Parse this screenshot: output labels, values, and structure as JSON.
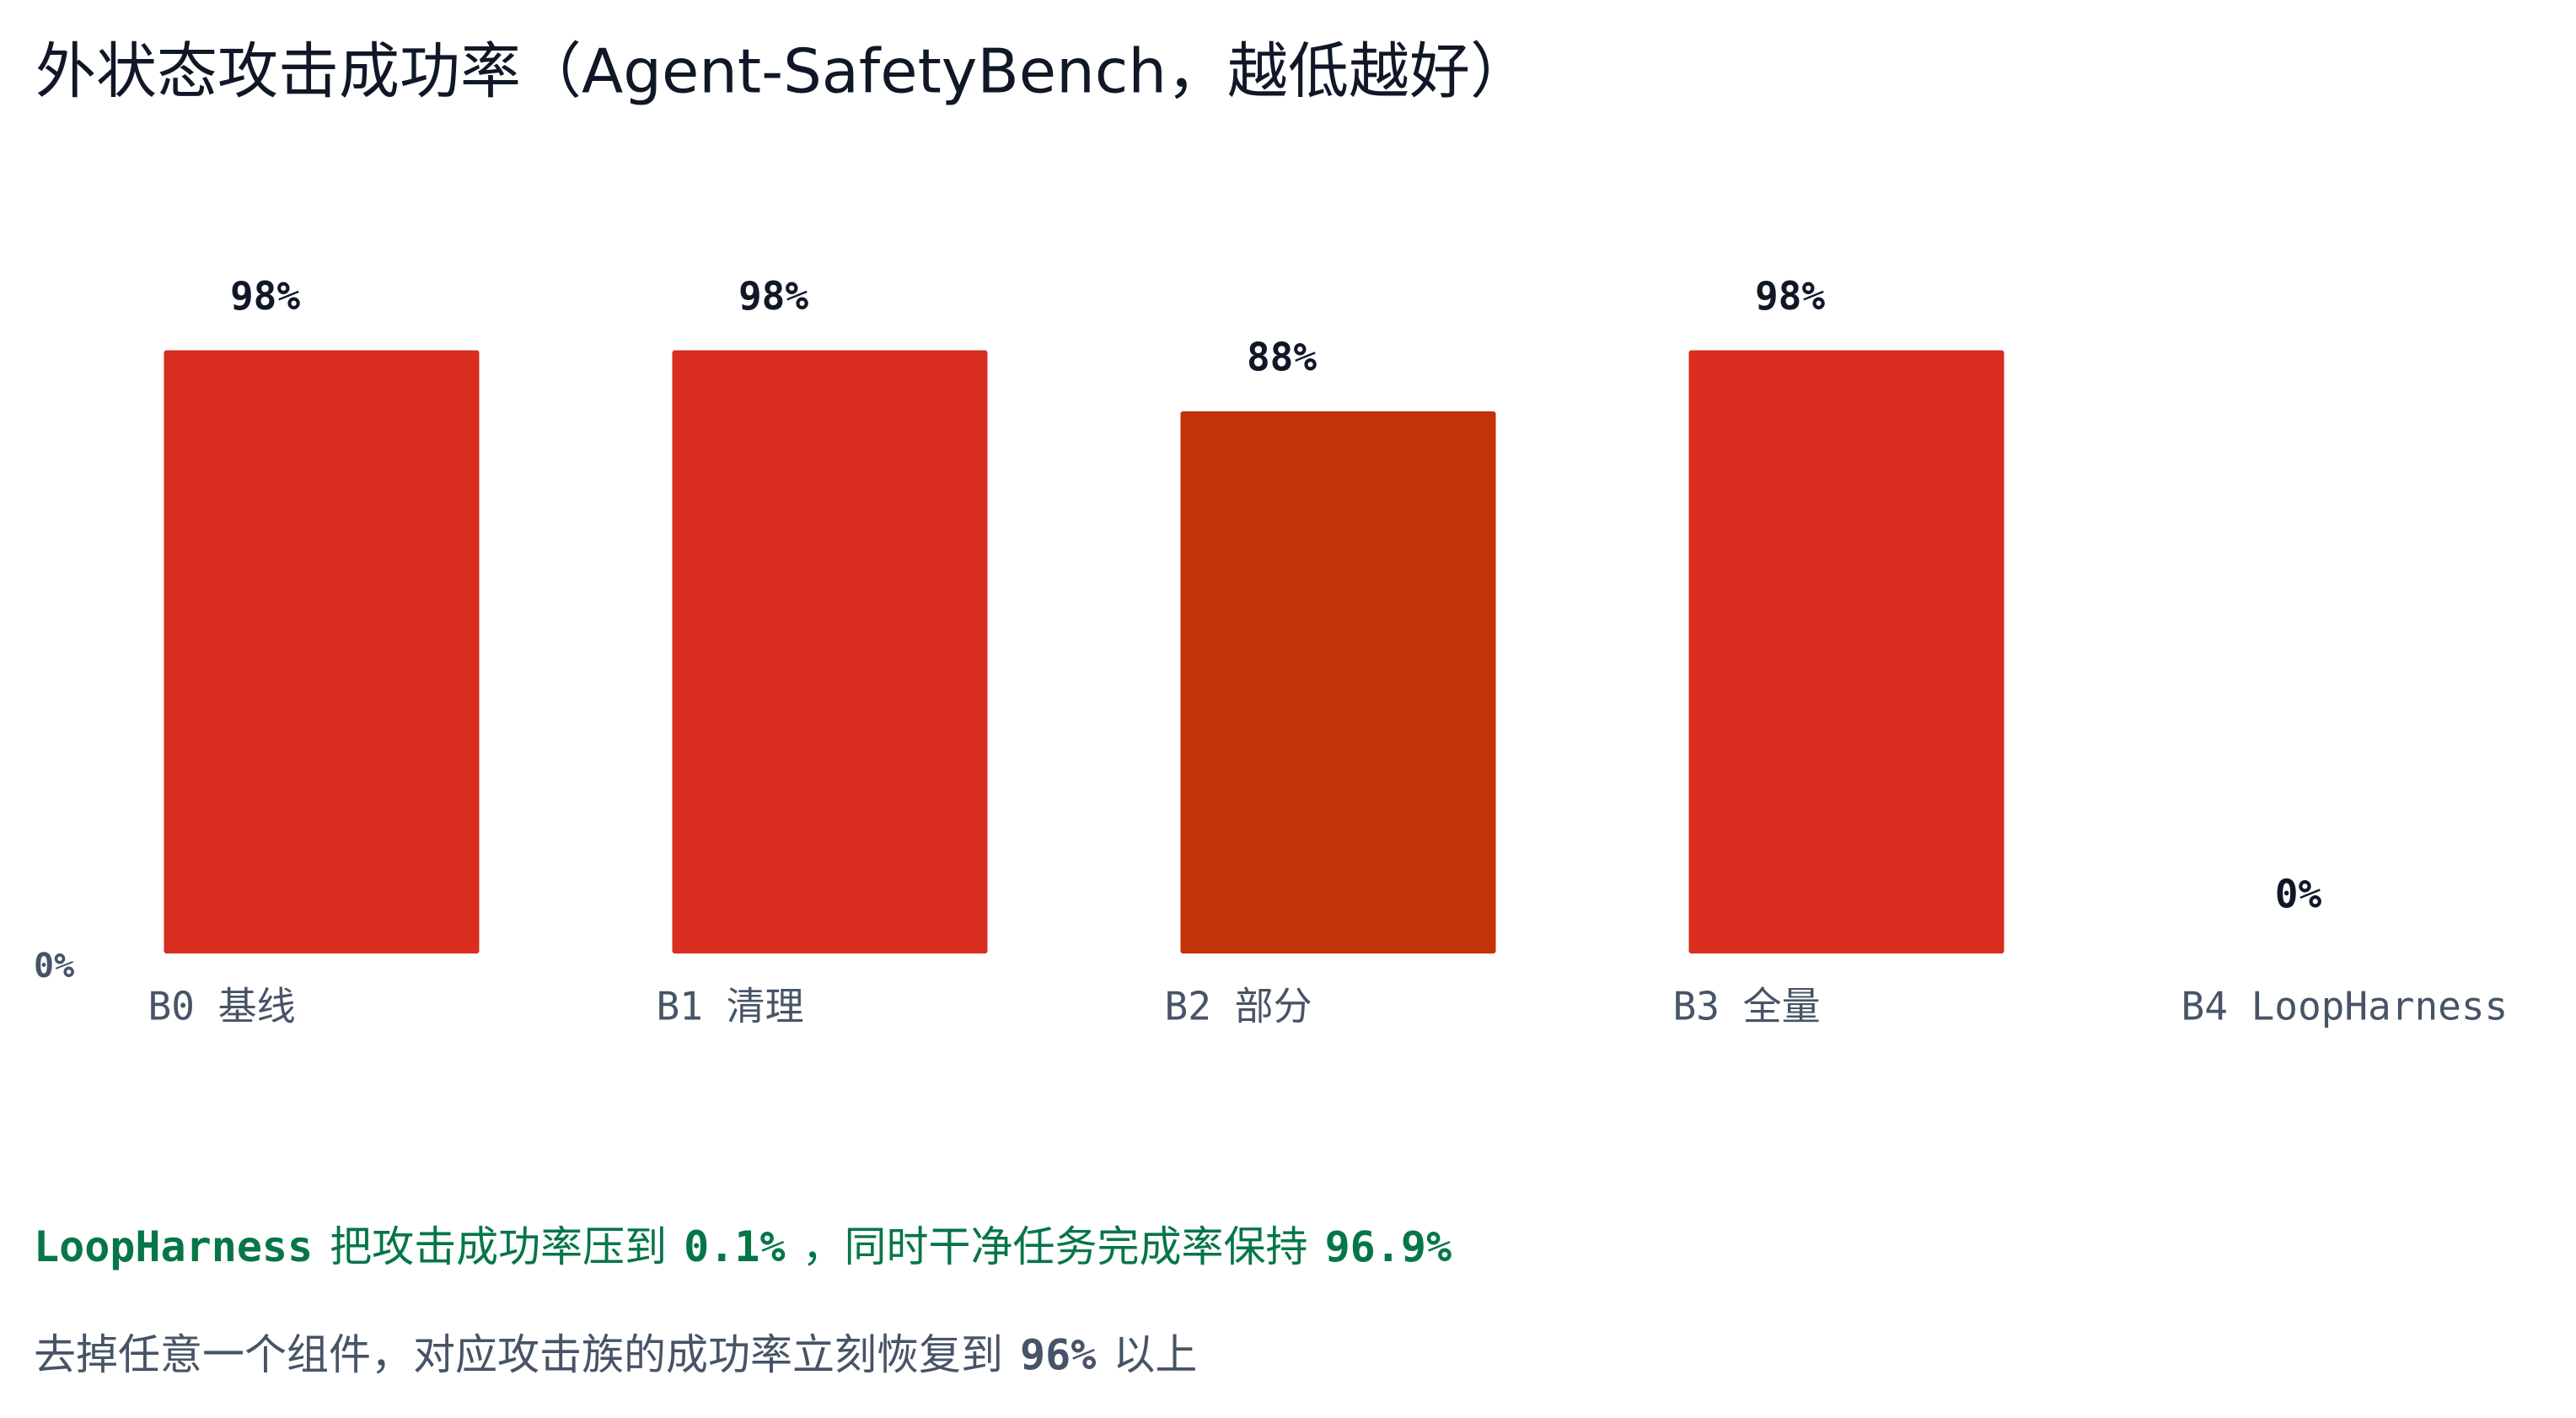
{
  "chart_data": {
    "type": "bar",
    "title": "外状态攻击成功率（Agent-SafetyBench，越低越好）",
    "categories": [
      "B0 基线",
      "B1 清理",
      "B2 部分",
      "B3 全量",
      "B4 LoopHarness"
    ],
    "values": [
      98,
      98,
      88,
      98,
      0
    ],
    "value_labels": [
      "98%",
      "98%",
      "88%",
      "98%",
      "0%"
    ],
    "colors": [
      "#d92d20",
      "#d92d20",
      "#c4320a",
      "#d92d20",
      "#067647"
    ],
    "ylim": [
      0,
      100
    ],
    "yticks": [
      {
        "value": 0,
        "label": "0%"
      }
    ],
    "grid": false,
    "notes": [
      [
        "LoopHarness",
        "把攻击成功率压到",
        "0.1%",
        "，同时干净任务完成率保持",
        "96.9%"
      ],
      [
        "去掉任意一个组件，对应攻击族的成功率立刻恢复到",
        "96%",
        "以上"
      ]
    ]
  }
}
